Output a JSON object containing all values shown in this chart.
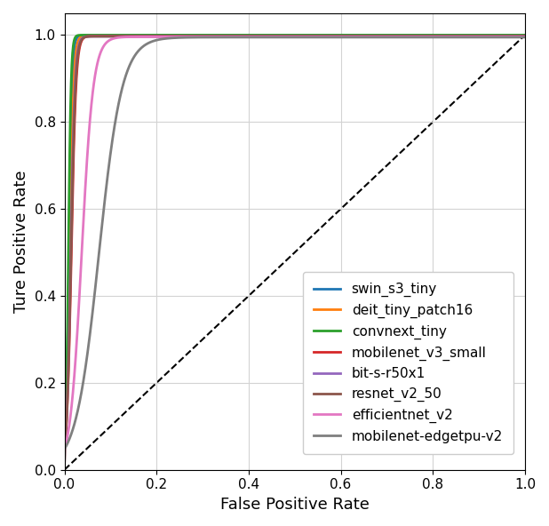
{
  "title": "",
  "xlabel": "False Positive Rate",
  "ylabel": "Ture Positive Rate",
  "xlim": [
    0.0,
    1.0
  ],
  "ylim": [
    0.0,
    1.05
  ],
  "models": [
    {
      "label": "swin_s3_tiny",
      "color": "#1f77b4",
      "steepness": 300,
      "plateau_tpr": 0.999
    },
    {
      "label": "deit_tiny_patch16",
      "color": "#ff7f0e",
      "steepness": 250,
      "plateau_tpr": 0.998
    },
    {
      "label": "convnext_tiny",
      "color": "#2ca02c",
      "steepness": 350,
      "plateau_tpr": 1.0
    },
    {
      "label": "mobilenet_v3_small",
      "color": "#d62728",
      "steepness": 200,
      "plateau_tpr": 0.998
    },
    {
      "label": "bit-s-r50x1",
      "color": "#9467bd",
      "steepness": 220,
      "plateau_tpr": 0.997
    },
    {
      "label": "resnet_v2_50",
      "color": "#8c564b",
      "steepness": 210,
      "plateau_tpr": 0.997
    },
    {
      "label": "efficientnet_v2",
      "color": "#e377c2",
      "steepness": 80,
      "plateau_tpr": 0.996
    },
    {
      "label": "mobilenet-edgetpu-v2",
      "color": "#7f7f7f",
      "steepness": 40,
      "plateau_tpr": 0.995
    }
  ],
  "diagonal": {
    "color": "black",
    "linestyle": "dashed"
  },
  "grid": true,
  "fontsize_labels": 13,
  "fontsize_ticks": 11,
  "fontsize_legend": 11,
  "linewidth": 2.0
}
